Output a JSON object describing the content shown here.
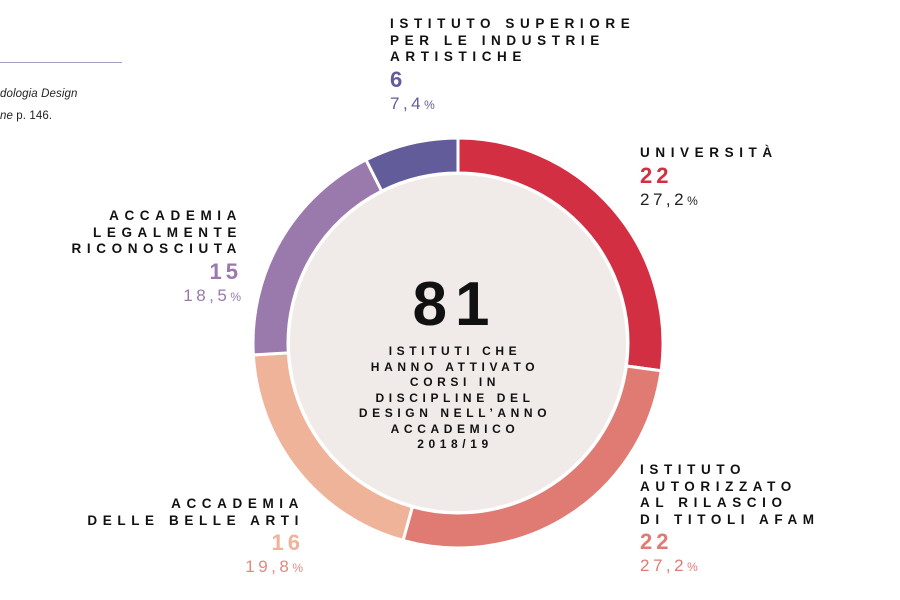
{
  "note": {
    "line1": "dologia Design",
    "line2_italic": "ne",
    "line2_rest": " p. 146."
  },
  "center": {
    "total": "81",
    "caption_lines": [
      "ISTITUTI CHE",
      "HANNO ATTIVATO",
      "CORSI IN",
      "DISCIPLINE DEL",
      "DESIGN NELL’ANNO",
      "ACCADEMICO",
      "2018/19"
    ]
  },
  "colors": {
    "ring_fill": "#f0ebe8",
    "separator": "#ffffff"
  },
  "chart_data": {
    "type": "pie",
    "style": "donut",
    "total": 81,
    "slices": [
      {
        "name_lines": [
          "UNIVERSITÀ"
        ],
        "value": 22,
        "value_label": "22",
        "percent_value": "27,2",
        "percent_sign": "%",
        "color": "#d32f43",
        "number_color": "#d32f43",
        "percent_color": "#222222"
      },
      {
        "name_lines": [
          "ISTITUTO",
          "AUTORIZZATO",
          "AL RILASCIO",
          "DI TITOLI AFAM"
        ],
        "value": 22,
        "value_label": "22",
        "percent_value": "27,2",
        "percent_sign": "%",
        "color": "#e07b74",
        "number_color": "#e07b74",
        "percent_color": "#e07b74"
      },
      {
        "name_lines": [
          "ACCADEMIA",
          "DELLE BELLE ARTI"
        ],
        "value": 16,
        "value_label": "16",
        "percent_value": "19,8",
        "percent_sign": "%",
        "color": "#efb39a",
        "number_color": "#efb39a",
        "percent_color": "#e08a80"
      },
      {
        "name_lines": [
          "ACCADEMIA",
          "LEGALMENTE",
          "RICONOSCIUTA"
        ],
        "value": 15,
        "value_label": "15",
        "percent_value": "18,5",
        "percent_sign": "%",
        "color": "#9a79ad",
        "number_color": "#9a79ad",
        "percent_color": "#9a79ad"
      },
      {
        "name_lines": [
          "ISTITUTO SUPERIORE",
          "PER LE INDUSTRIE",
          "ARTISTICHE"
        ],
        "value": 6,
        "value_label": "6",
        "percent_value": "7,4",
        "percent_sign": "%",
        "color": "#625c9b",
        "number_color": "#625c9b",
        "percent_color": "#625c9b"
      }
    ]
  }
}
